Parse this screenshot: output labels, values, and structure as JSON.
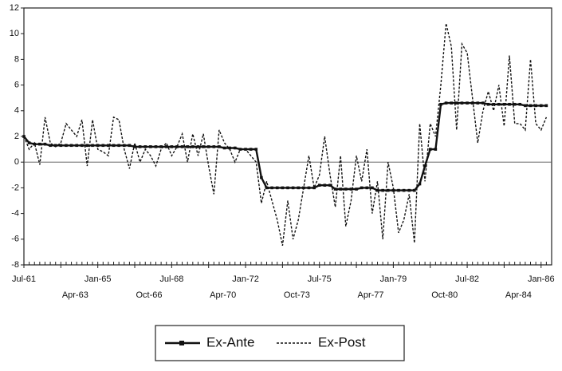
{
  "chart_data": {
    "type": "line",
    "categories": [
      "Jul-61",
      null,
      null,
      null,
      null,
      null,
      null,
      "Apr-63",
      null,
      null,
      null,
      null,
      null,
      null,
      "Jan-65",
      null,
      null,
      null,
      null,
      null,
      null,
      "Oct-66",
      null,
      null,
      null,
      null,
      null,
      null,
      "Jul-68",
      null,
      null,
      null,
      null,
      null,
      null,
      "Apr-70",
      null,
      null,
      null,
      null,
      null,
      null,
      "Jan-72",
      null,
      null,
      null,
      null,
      null,
      null,
      "Oct-73",
      null,
      null,
      null,
      null,
      null,
      null,
      "Jul-75",
      null,
      null,
      null,
      null,
      null,
      null,
      "Apr-77",
      null,
      null,
      null,
      null,
      null,
      null,
      "Jan-79",
      null,
      null,
      null,
      null,
      null,
      null,
      "Oct-80",
      null,
      null,
      null,
      null,
      null,
      null,
      "Jul-82",
      null,
      null,
      null,
      null,
      null,
      null,
      "Apr-84",
      null,
      null,
      null,
      null,
      null,
      null,
      "Jan-86",
      null
    ],
    "series": [
      {
        "name": "Ex-Ante",
        "color": "#111111",
        "style": "solid",
        "marker": "square",
        "values": [
          2.0,
          1.5,
          1.4,
          1.4,
          1.4,
          1.3,
          1.3,
          1.3,
          1.3,
          1.3,
          1.3,
          1.3,
          1.3,
          1.3,
          1.3,
          1.3,
          1.3,
          1.3,
          1.3,
          1.3,
          1.3,
          1.2,
          1.2,
          1.2,
          1.2,
          1.2,
          1.2,
          1.2,
          1.2,
          1.2,
          1.2,
          1.2,
          1.2,
          1.2,
          1.2,
          1.2,
          1.2,
          1.2,
          1.1,
          1.1,
          1.1,
          1.0,
          1.0,
          1.0,
          1.0,
          -1.2,
          -2.0,
          -2.0,
          -2.0,
          -2.0,
          -2.0,
          -2.0,
          -2.0,
          -2.0,
          -2.0,
          -2.0,
          -1.8,
          -1.8,
          -1.8,
          -2.1,
          -2.1,
          -2.1,
          -2.1,
          -2.1,
          -2.0,
          -2.0,
          -2.0,
          -2.2,
          -2.2,
          -2.2,
          -2.2,
          -2.2,
          -2.2,
          -2.2,
          -2.2,
          -1.7,
          -0.3,
          1.0,
          1.0,
          4.5,
          4.6,
          4.6,
          4.6,
          4.6,
          4.6,
          4.6,
          4.6,
          4.6,
          4.5,
          4.5,
          4.5,
          4.5,
          4.5,
          4.5,
          4.5,
          4.4,
          4.4,
          4.4,
          4.4,
          4.4
        ]
      },
      {
        "name": "Ex-Post",
        "color": "#111111",
        "style": "dotted",
        "values": [
          2.0,
          1.0,
          1.5,
          -0.2,
          3.5,
          1.5,
          1.2,
          1.5,
          3.0,
          2.5,
          2.0,
          3.3,
          -0.3,
          3.3,
          1.0,
          0.8,
          0.5,
          3.5,
          3.3,
          1.0,
          -0.5,
          1.5,
          0.0,
          1.0,
          0.5,
          -0.3,
          1.0,
          1.5,
          0.5,
          1.2,
          2.2,
          0.0,
          2.2,
          0.5,
          2.2,
          -0.3,
          -2.5,
          2.5,
          1.5,
          1.0,
          0.0,
          1.0,
          1.0,
          0.5,
          0.0,
          -3.2,
          -1.5,
          -3.0,
          -4.5,
          -6.5,
          -3.0,
          -6.0,
          -4.5,
          -2.0,
          0.5,
          -2.0,
          -1.0,
          2.0,
          -1.0,
          -3.5,
          0.5,
          -5.0,
          -3.0,
          0.5,
          -1.5,
          1.0,
          -4.0,
          -1.5,
          -6.0,
          0.0,
          -2.0,
          -5.5,
          -4.5,
          -2.5,
          -6.3,
          3.0,
          -1.5,
          3.0,
          2.0,
          6.0,
          10.8,
          9.0,
          2.5,
          9.2,
          8.5,
          5.0,
          1.5,
          4.0,
          5.5,
          4.0,
          6.0,
          2.8,
          8.3,
          3.0,
          3.0,
          2.5,
          8.0,
          3.0,
          2.5,
          3.5
        ]
      }
    ],
    "ylim": [
      -8,
      12
    ],
    "yticks": [
      -8,
      -6,
      -4,
      -2,
      0,
      2,
      4,
      6,
      8,
      10,
      12
    ],
    "zero_line": true,
    "grid": false,
    "legend": "bottom"
  }
}
